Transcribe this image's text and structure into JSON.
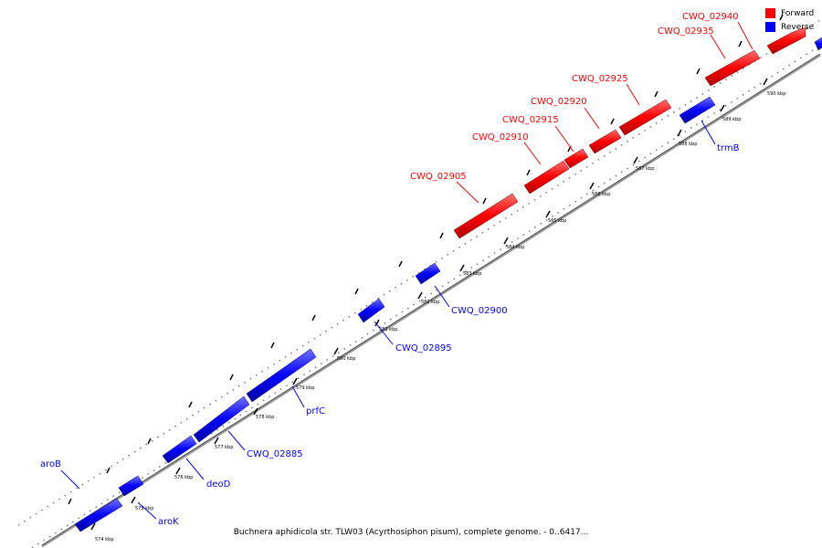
{
  "caption": "Buchnera aphidicola str. TLW03 (Acyrthosiphon pisum), complete genome. - 0..6417...",
  "legend": [
    {
      "label": "Forward",
      "color": "#ff0000"
    },
    {
      "label": "Reverse",
      "color": "#0000ff"
    }
  ],
  "colors": {
    "forward": "#ff0000",
    "reverse": "#0000ff",
    "backbone": "#888888"
  },
  "tick_labels": [
    "574 kbp",
    "575 kbp",
    "576 kbp",
    "577 kbp",
    "578 kbp",
    "579 kbp",
    "580 kbp",
    "581 kbp",
    "582 kbp",
    "583 kbp",
    "584 kbp",
    "585 kbp",
    "586 kbp",
    "587 kbp",
    "588 kbp",
    "589 kbp",
    "590 kbp"
  ],
  "genes": [
    {
      "name": "CWQ_02940",
      "strand": "forward"
    },
    {
      "name": "CWQ_02935",
      "strand": "forward"
    },
    {
      "name": "CWQ_02925",
      "strand": "forward"
    },
    {
      "name": "CWQ_02920",
      "strand": "forward"
    },
    {
      "name": "CWQ_02915",
      "strand": "forward"
    },
    {
      "name": "CWQ_02910",
      "strand": "forward"
    },
    {
      "name": "CWQ_02905",
      "strand": "forward"
    },
    {
      "name": "trmB",
      "strand": "reverse"
    },
    {
      "name": "CWQ_02900",
      "strand": "reverse"
    },
    {
      "name": "CWQ_02895",
      "strand": "reverse"
    },
    {
      "name": "prfC",
      "strand": "reverse"
    },
    {
      "name": "CWQ_02885",
      "strand": "reverse"
    },
    {
      "name": "deoD",
      "strand": "reverse"
    },
    {
      "name": "aroK",
      "strand": "reverse"
    },
    {
      "name": "aroB",
      "strand": "reverse"
    }
  ]
}
